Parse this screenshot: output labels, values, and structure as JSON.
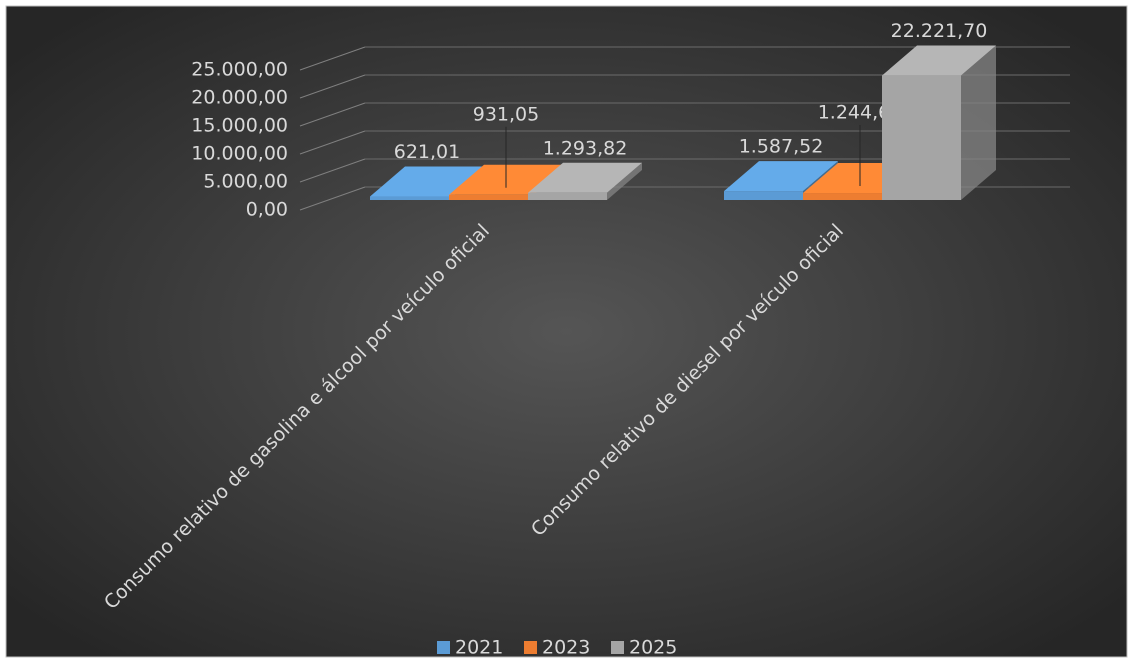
{
  "chart_data": {
    "type": "bar3d",
    "categories": [
      "Consumo relativo de gasolina e álcool por veículo oficial",
      "Consumo relativo de diesel por veículo oficial"
    ],
    "series": [
      {
        "name": "2021",
        "color": "#5b9bd5",
        "values": [
          621.01,
          1587.52
        ],
        "value_labels": [
          "621,01",
          "1.587,52"
        ]
      },
      {
        "name": "2023",
        "color": "#ed7d31",
        "values": [
          931.05,
          1244.67
        ],
        "value_labels": [
          "931,05",
          "1.244,67"
        ]
      },
      {
        "name": "2025",
        "color": "#a5a5a5",
        "values": [
          1293.82,
          22221.7
        ],
        "value_labels": [
          "1.293,82",
          "22.221,70"
        ]
      }
    ],
    "ylim": [
      0,
      25000
    ],
    "yticks": [
      {
        "value": 0,
        "label": "0,00"
      },
      {
        "value": 5000,
        "label": "5.000,00"
      },
      {
        "value": 10000,
        "label": "10.000,00"
      },
      {
        "value": 15000,
        "label": "15.000,00"
      },
      {
        "value": 20000,
        "label": "20.000,00"
      },
      {
        "value": 25000,
        "label": "25.000,00"
      }
    ],
    "grid": true,
    "legend": "bottom"
  }
}
